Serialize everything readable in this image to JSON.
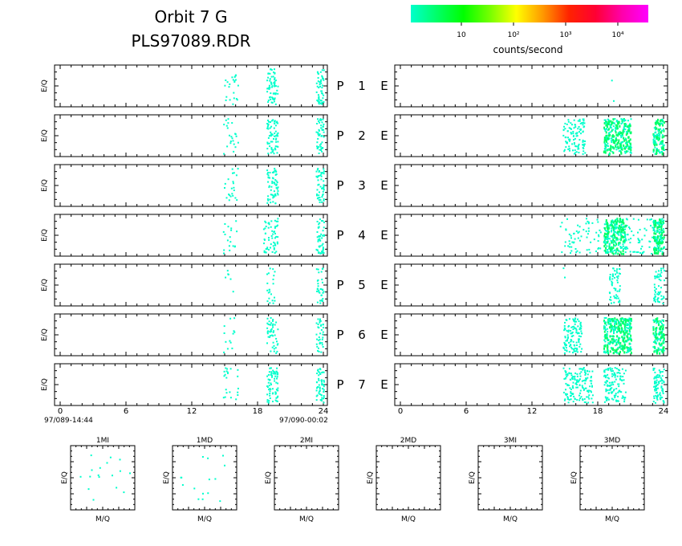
{
  "header": {
    "title": "Orbit 7 G",
    "subtitle": "PLS97089.RDR"
  },
  "colorbar": {
    "colors": [
      "#00ffcc",
      "#00ff66",
      "#00ff00",
      "#77ff00",
      "#ffff00",
      "#ff9900",
      "#ff2200",
      "#ff0033",
      "#ff00aa",
      "#ff00ff"
    ],
    "tick_labels": [
      "10",
      "10²",
      "10³",
      "10⁴"
    ],
    "label": "counts/second"
  },
  "panel_labels": {
    "y_label": "E/Q",
    "row_prefix": "P",
    "right_label": "E",
    "rows": [
      "1",
      "2",
      "3",
      "4",
      "5",
      "6",
      "7"
    ]
  },
  "time_axis": {
    "ticks": [
      "0",
      "6",
      "12",
      "18",
      "24"
    ],
    "start_label": "97/089-14:44",
    "end_label": "97/090-00:02"
  },
  "mq_panels": {
    "titles": [
      "1MI",
      "1MD",
      "2MI",
      "2MD",
      "3MI",
      "3MD"
    ],
    "x_label": "M/Q",
    "y_label": "E/Q"
  },
  "chart_data": {
    "type": "heatmap",
    "x_range": [
      0,
      24
    ],
    "x_ticks": [
      0,
      6,
      12,
      18,
      24
    ],
    "color_scale": "log",
    "legend": "top-right",
    "dot_color": "#00ffcc",
    "dense_color": "#00ff66",
    "left_series": [
      {
        "row": "1",
        "bands": [
          [
            14.8,
            16.2,
            0.1
          ],
          [
            18.8,
            19.8,
            0.4
          ],
          [
            23.3,
            24.0,
            0.45
          ]
        ]
      },
      {
        "row": "2",
        "bands": [
          [
            14.8,
            16.2,
            0.1
          ],
          [
            18.8,
            19.8,
            0.4
          ],
          [
            23.3,
            24.0,
            0.45
          ]
        ]
      },
      {
        "row": "3",
        "bands": [
          [
            14.8,
            16.2,
            0.1
          ],
          [
            18.8,
            19.8,
            0.4
          ],
          [
            23.3,
            24.0,
            0.45
          ]
        ]
      },
      {
        "row": "4",
        "bands": [
          [
            14.8,
            16.2,
            0.08
          ],
          [
            18.5,
            19.8,
            0.3
          ],
          [
            23.3,
            24.0,
            0.45
          ]
        ]
      },
      {
        "row": "5",
        "bands": [
          [
            15.0,
            16.0,
            0.04
          ],
          [
            18.8,
            19.5,
            0.2
          ],
          [
            23.3,
            24.0,
            0.3
          ]
        ]
      },
      {
        "row": "6",
        "bands": [
          [
            14.8,
            16.2,
            0.06
          ],
          [
            18.8,
            19.8,
            0.3
          ],
          [
            23.3,
            24.0,
            0.35
          ]
        ]
      },
      {
        "row": "7",
        "bands": [
          [
            14.8,
            16.2,
            0.1
          ],
          [
            18.8,
            19.8,
            0.45
          ],
          [
            23.3,
            24.0,
            0.5
          ]
        ]
      }
    ],
    "right_series": [
      {
        "row": "1",
        "bands": [
          [
            19.2,
            19.5,
            0.05
          ]
        ]
      },
      {
        "row": "2",
        "bands": [
          [
            14.8,
            16.8,
            0.35
          ],
          [
            18.5,
            21.0,
            0.7
          ],
          [
            23.0,
            24.0,
            0.8
          ]
        ]
      },
      {
        "row": "3",
        "bands": []
      },
      {
        "row": "4",
        "bands": [
          [
            14.5,
            24.0,
            0.12
          ],
          [
            18.5,
            20.5,
            0.7
          ],
          [
            23.0,
            24.0,
            0.8
          ]
        ]
      },
      {
        "row": "5",
        "bands": [
          [
            14.8,
            15.0,
            0.05
          ],
          [
            19.0,
            20.0,
            0.35
          ],
          [
            23.0,
            24.0,
            0.35
          ]
        ]
      },
      {
        "row": "6",
        "bands": [
          [
            14.8,
            16.5,
            0.45
          ],
          [
            18.5,
            21.0,
            0.8
          ],
          [
            23.0,
            24.0,
            0.8
          ]
        ]
      },
      {
        "row": "7",
        "bands": [
          [
            14.8,
            17.5,
            0.35
          ],
          [
            18.5,
            20.5,
            0.4
          ],
          [
            23.0,
            24.0,
            0.55
          ]
        ]
      }
    ],
    "mq_density": [
      0.55,
      0.5,
      0,
      0,
      0,
      0
    ]
  }
}
